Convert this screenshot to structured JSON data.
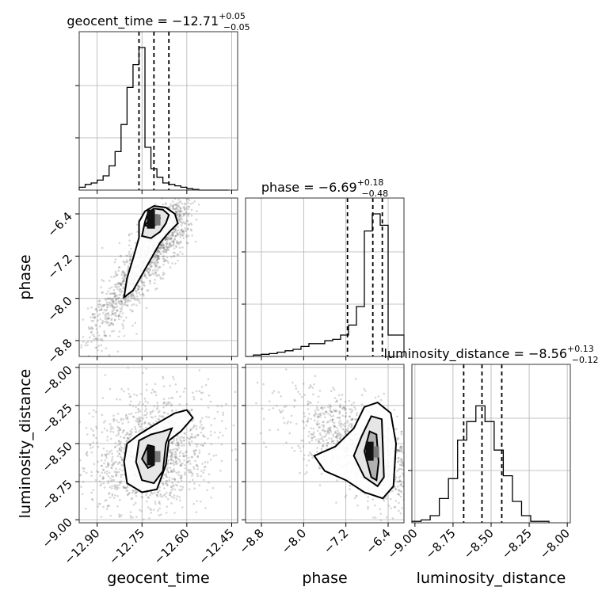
{
  "chart_data": {
    "type": "corner",
    "parameters": [
      "geocent_time",
      "phase",
      "luminosity_distance"
    ],
    "axis_labels": {
      "geocent_time": "geocent_time",
      "phase": "phase",
      "luminosity_distance": "luminosity_distance"
    },
    "ranges": {
      "geocent_time": [
        -12.96,
        -12.43
      ],
      "phase": [
        -9.1,
        -6.1
      ],
      "luminosity_distance": [
        -9.02,
        -7.98
      ]
    },
    "ticks": {
      "geocent_time": [
        "−12.90",
        "−12.75",
        "−12.60",
        "−12.45"
      ],
      "geocent_time_values": [
        -12.9,
        -12.75,
        -12.6,
        -12.45
      ],
      "phase": [
        "−8.8",
        "−8.0",
        "−7.2",
        "−6.4"
      ],
      "phase_values": [
        -8.8,
        -8.0,
        -7.2,
        -6.4
      ],
      "luminosity_distance": [
        "−9.00",
        "−8.75",
        "−8.50",
        "−8.25",
        "−8.00"
      ],
      "luminosity_distance_values": [
        -9.0,
        -8.75,
        -8.5,
        -8.25,
        -8.0
      ]
    },
    "titles": {
      "geocent_time": {
        "name": "geocent_time",
        "value": "−12.71",
        "plus": "+0.05",
        "minus": "−0.05"
      },
      "phase": {
        "name": "phase",
        "value": "−6.69",
        "plus": "+0.18",
        "minus": "−0.48"
      },
      "luminosity_distance": {
        "name": "luminosity_distance",
        "value": "−8.56",
        "plus": "+0.13",
        "minus": "−0.12"
      }
    },
    "quantiles": {
      "geocent_time": [
        -12.76,
        -12.71,
        -12.66
      ],
      "phase": [
        -7.17,
        -6.69,
        -6.51
      ],
      "luminosity_distance": [
        -8.68,
        -8.56,
        -8.43
      ]
    },
    "histograms": {
      "geocent_time": {
        "edges": [
          -12.96,
          -12.94,
          -12.92,
          -12.9,
          -12.88,
          -12.86,
          -12.84,
          -12.82,
          -12.8,
          -12.78,
          -12.76,
          -12.74,
          -12.72,
          -12.7,
          -12.68,
          -12.66,
          -12.64,
          -12.62,
          -12.6,
          -12.58,
          -12.56,
          -12.54,
          -12.52,
          -12.5,
          -12.48,
          -12.46
        ],
        "counts": [
          0.02,
          0.04,
          0.05,
          0.07,
          0.1,
          0.17,
          0.27,
          0.46,
          0.72,
          0.88,
          1.0,
          0.3,
          0.15,
          0.09,
          0.05,
          0.04,
          0.03,
          0.02,
          0.01,
          0.005,
          0,
          0,
          0,
          0,
          0
        ]
      },
      "phase": {
        "edges": [
          -9.1,
          -8.95,
          -8.8,
          -8.65,
          -8.5,
          -8.35,
          -8.2,
          -8.05,
          -7.9,
          -7.75,
          -7.6,
          -7.45,
          -7.3,
          -7.15,
          -7.0,
          -6.85,
          -6.7,
          -6.55,
          -6.4,
          -6.25,
          -6.1
        ],
        "counts": [
          0.0,
          0.01,
          0.015,
          0.02,
          0.03,
          0.04,
          0.05,
          0.07,
          0.09,
          0.09,
          0.11,
          0.12,
          0.15,
          0.22,
          0.35,
          0.88,
          1.0,
          0.92,
          0.15,
          0.15
        ]
      },
      "luminosity_distance": {
        "edges": [
          -9.02,
          -8.96,
          -8.9,
          -8.84,
          -8.78,
          -8.72,
          -8.66,
          -8.6,
          -8.54,
          -8.48,
          -8.42,
          -8.36,
          -8.3,
          -8.24,
          -8.18,
          -8.12
        ],
        "counts": [
          0.01,
          0.02,
          0.05,
          0.17,
          0.31,
          0.58,
          0.71,
          0.82,
          0.71,
          0.51,
          0.33,
          0.15,
          0.05,
          0.01,
          0.01
        ]
      }
    },
    "pairs": [
      {
        "x": "geocent_time",
        "y": "phase",
        "center": [
          -12.71,
          -6.6
        ],
        "axis_major": [
          -12.84,
          -7.95
        ],
        "axis_minor": [
          0.04,
          0.25
        ],
        "density_peak": [
          -12.72,
          -6.5
        ],
        "contours": [
          [
            [
              -12.81,
              -7.98
            ],
            [
              -12.8,
              -7.62
            ],
            [
              -12.78,
              -7.25
            ],
            [
              -12.76,
              -6.85
            ],
            [
              -12.76,
              -6.55
            ],
            [
              -12.74,
              -6.35
            ],
            [
              -12.71,
              -6.25
            ],
            [
              -12.67,
              -6.28
            ],
            [
              -12.64,
              -6.4
            ],
            [
              -12.63,
              -6.58
            ],
            [
              -12.66,
              -6.75
            ],
            [
              -12.69,
              -6.95
            ],
            [
              -12.72,
              -7.25
            ],
            [
              -12.75,
              -7.55
            ],
            [
              -12.78,
              -7.85
            ]
          ],
          [
            [
              -12.75,
              -6.82
            ],
            [
              -12.74,
              -6.55
            ],
            [
              -12.73,
              -6.38
            ],
            [
              -12.71,
              -6.3
            ],
            [
              -12.68,
              -6.32
            ],
            [
              -12.66,
              -6.42
            ],
            [
              -12.67,
              -6.58
            ],
            [
              -12.69,
              -6.74
            ],
            [
              -12.72,
              -6.86
            ]
          ],
          [
            [
              -12.74,
              -6.62
            ],
            [
              -12.72,
              -6.45
            ],
            [
              -12.7,
              -6.42
            ],
            [
              -12.69,
              -6.48
            ],
            [
              -12.7,
              -6.6
            ],
            [
              -12.72,
              -6.64
            ]
          ]
        ]
      },
      {
        "x": "geocent_time",
        "y": "luminosity_distance",
        "center": [
          -12.72,
          -8.56
        ],
        "axis_major": [
          0.09,
          0.14
        ],
        "axis_minor": [
          0.05,
          -0.14
        ],
        "density_peak": [
          -12.72,
          -8.58
        ],
        "contours": [
          [
            [
              -12.81,
              -8.62
            ],
            [
              -12.8,
              -8.5
            ],
            [
              -12.76,
              -8.44
            ],
            [
              -12.71,
              -8.38
            ],
            [
              -12.64,
              -8.3
            ],
            [
              -12.6,
              -8.28
            ],
            [
              -12.58,
              -8.33
            ],
            [
              -12.62,
              -8.42
            ],
            [
              -12.66,
              -8.48
            ],
            [
              -12.67,
              -8.64
            ],
            [
              -12.7,
              -8.8
            ],
            [
              -12.75,
              -8.82
            ],
            [
              -12.8,
              -8.76
            ]
          ],
          [
            [
              -12.77,
              -8.62
            ],
            [
              -12.76,
              -8.48
            ],
            [
              -12.72,
              -8.44
            ],
            [
              -12.68,
              -8.42
            ],
            [
              -12.65,
              -8.4
            ],
            [
              -12.67,
              -8.5
            ],
            [
              -12.68,
              -8.68
            ],
            [
              -12.71,
              -8.76
            ],
            [
              -12.75,
              -8.74
            ]
          ],
          [
            [
              -12.75,
              -8.6
            ],
            [
              -12.73,
              -8.51
            ],
            [
              -12.71,
              -8.52
            ],
            [
              -12.71,
              -8.64
            ],
            [
              -12.73,
              -8.66
            ]
          ]
        ]
      },
      {
        "x": "phase",
        "y": "luminosity_distance",
        "center": [
          -6.75,
          -8.56
        ],
        "axis_major": [
          0.7,
          -0.14
        ],
        "axis_minor": [
          0.12,
          0.12
        ],
        "density_peak": [
          -6.75,
          -8.55
        ],
        "contours": [
          [
            [
              -7.8,
              -8.58
            ],
            [
              -7.4,
              -8.52
            ],
            [
              -7.05,
              -8.4
            ],
            [
              -6.85,
              -8.26
            ],
            [
              -6.6,
              -8.23
            ],
            [
              -6.35,
              -8.3
            ],
            [
              -6.25,
              -8.5
            ],
            [
              -6.3,
              -8.78
            ],
            [
              -6.5,
              -8.86
            ],
            [
              -6.85,
              -8.82
            ],
            [
              -7.2,
              -8.74
            ],
            [
              -7.6,
              -8.68
            ]
          ],
          [
            [
              -7.05,
              -8.58
            ],
            [
              -6.9,
              -8.45
            ],
            [
              -6.72,
              -8.32
            ],
            [
              -6.52,
              -8.34
            ],
            [
              -6.5,
              -8.52
            ],
            [
              -6.48,
              -8.72
            ],
            [
              -6.6,
              -8.78
            ],
            [
              -6.85,
              -8.72
            ]
          ],
          [
            [
              -6.85,
              -8.55
            ],
            [
              -6.75,
              -8.42
            ],
            [
              -6.62,
              -8.44
            ],
            [
              -6.58,
              -8.62
            ],
            [
              -6.62,
              -8.74
            ],
            [
              -6.72,
              -8.72
            ]
          ]
        ]
      }
    ]
  }
}
